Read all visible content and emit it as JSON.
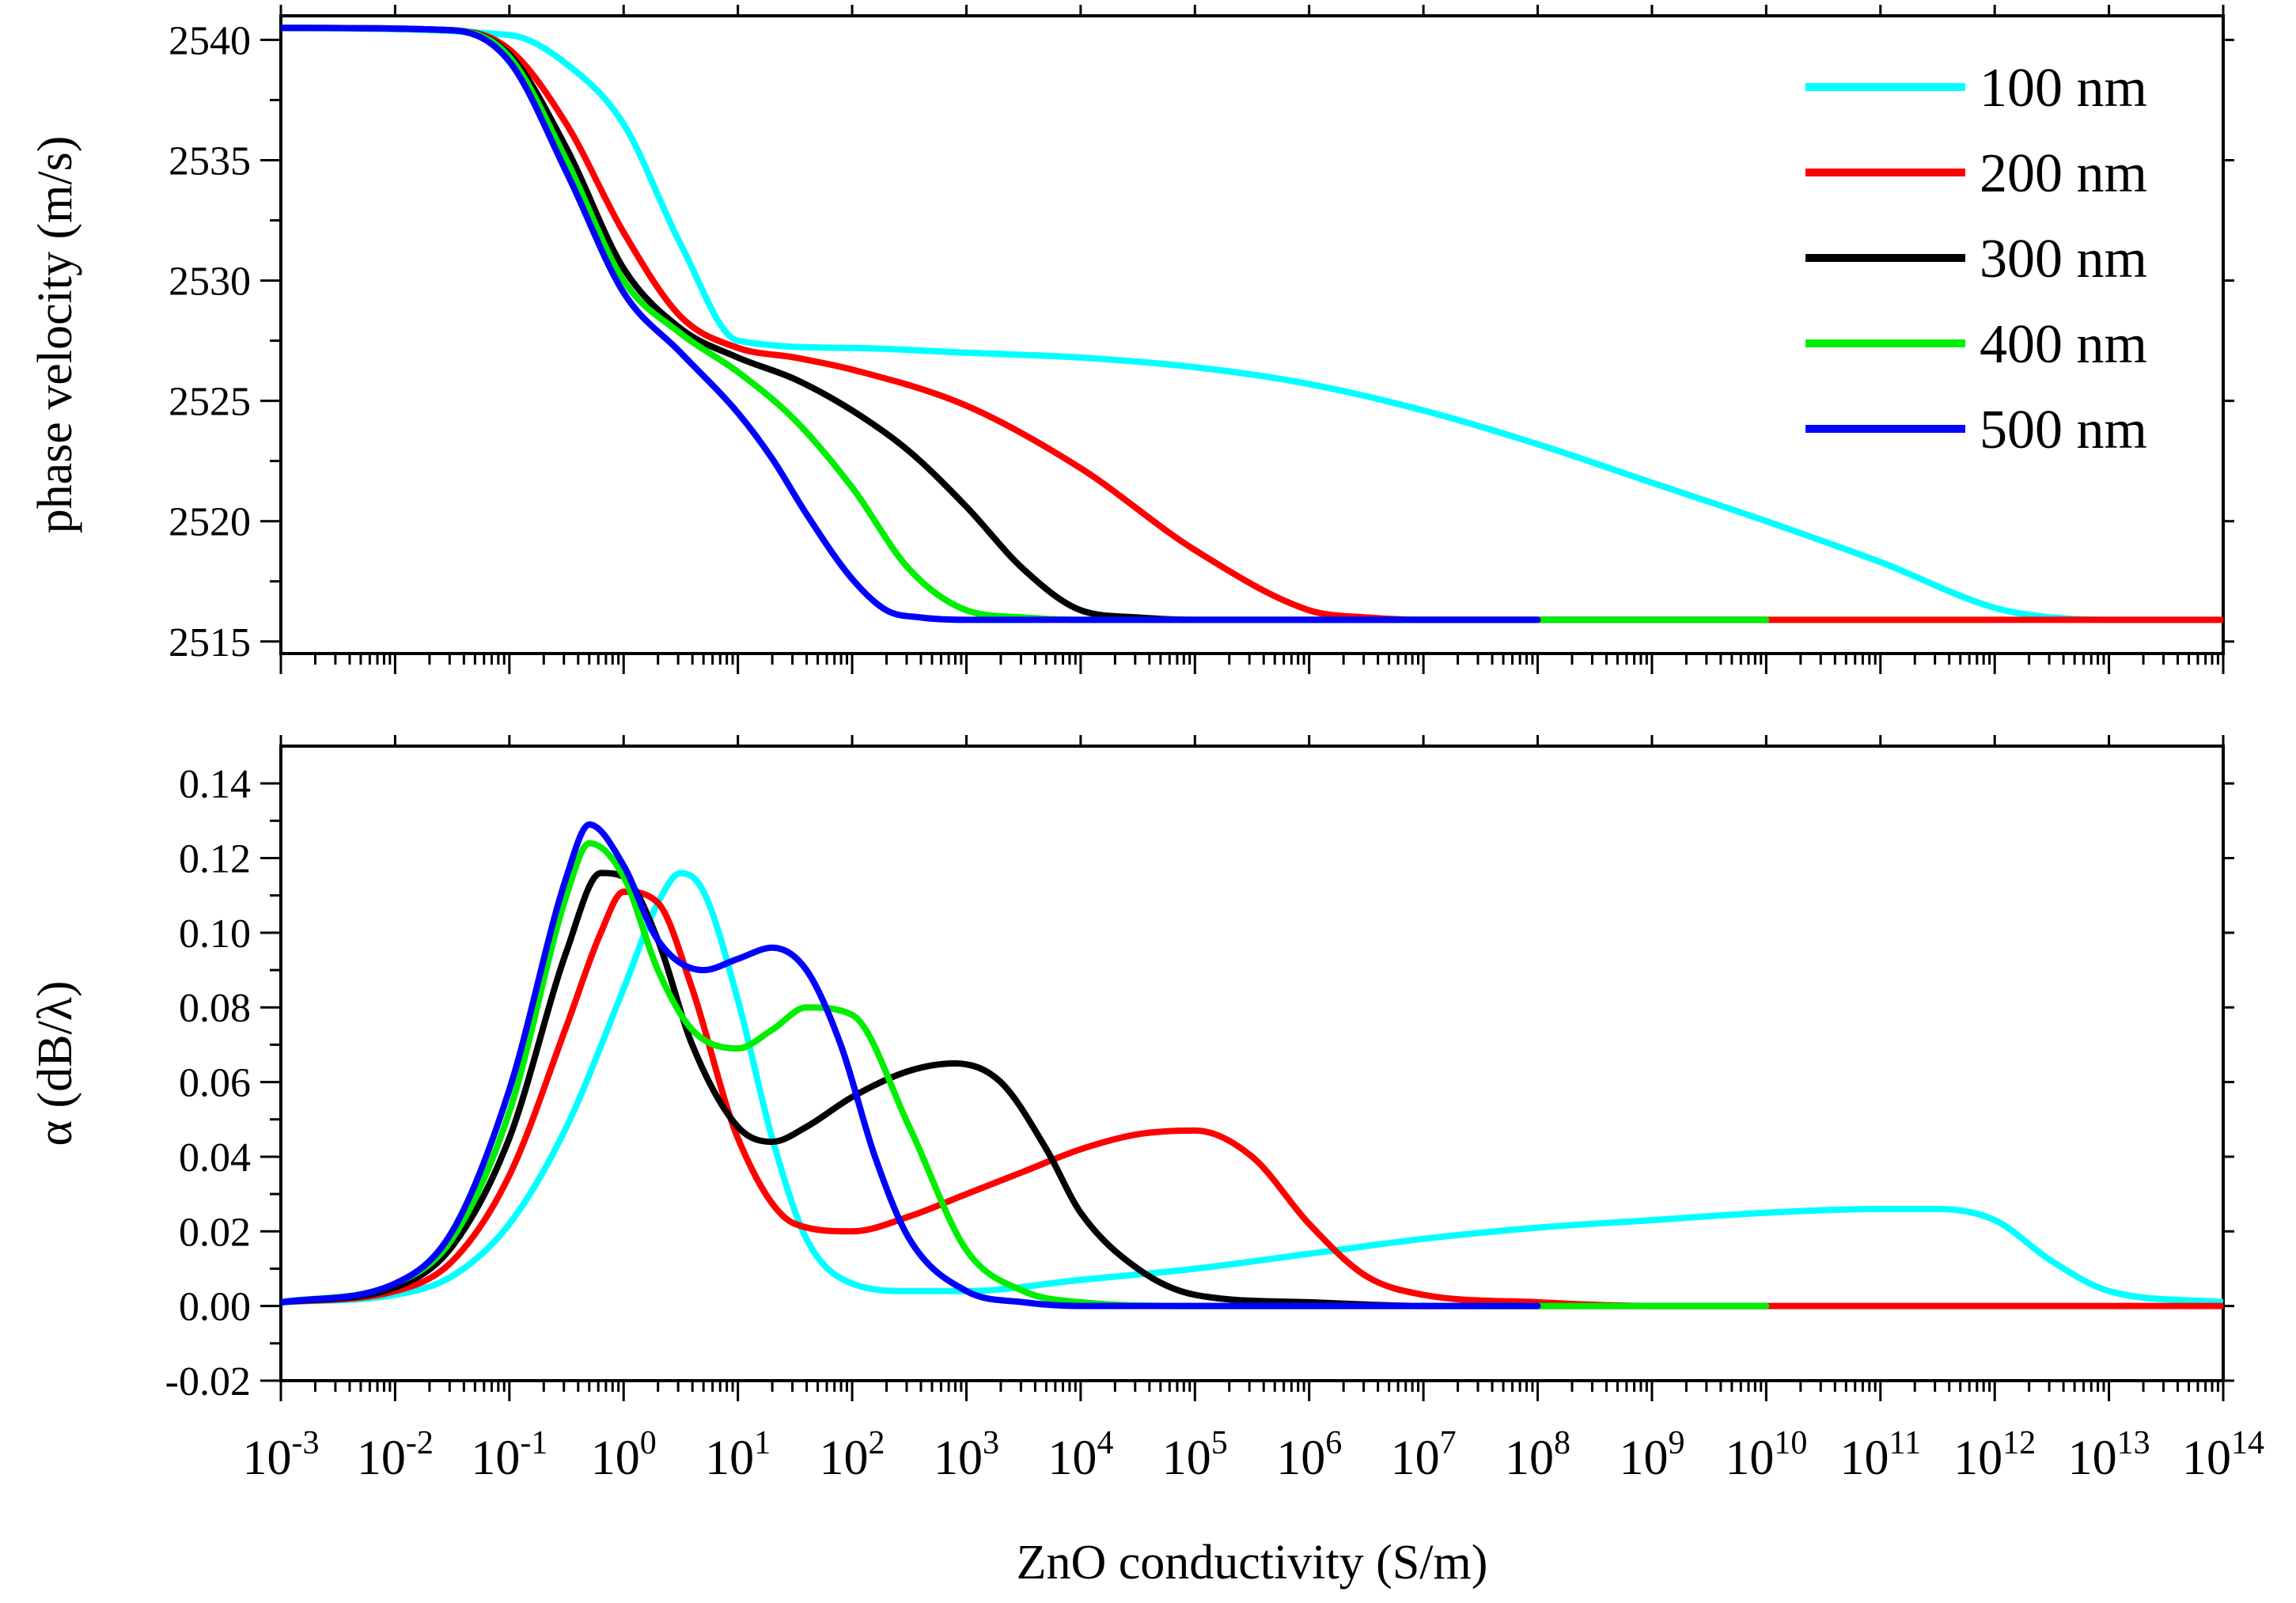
{
  "chart_data": [
    {
      "type": "line",
      "panel": "top",
      "ylabel": "phase velocity (m/s)",
      "xscale": "log",
      "xlim_exponent": [
        -3,
        14
      ],
      "ylim": [
        2514.5,
        2541
      ],
      "yticks": [
        2515,
        2520,
        2525,
        2530,
        2535,
        2540
      ],
      "ytick_labels": [
        "2515",
        "2520",
        "2525",
        "2530",
        "2535",
        "2540"
      ],
      "legend_position": "top-right",
      "legend": [
        "100 nm",
        "200 nm",
        "300 nm",
        "400 nm",
        "500 nm"
      ],
      "series": [
        {
          "name": "100 nm",
          "color": "#00FFFF",
          "log10_x": [
            -3,
            -1,
            -0.5,
            0,
            0.5,
            1,
            2,
            3,
            4,
            5,
            6,
            7,
            8,
            9,
            10,
            11,
            12,
            12.5,
            13,
            14
          ],
          "y": [
            2540.5,
            2540.2,
            2539.0,
            2536.5,
            2531.5,
            2527.5,
            2527.2,
            2527.0,
            2526.8,
            2526.4,
            2525.7,
            2524.6,
            2523.2,
            2521.6,
            2520.0,
            2518.3,
            2516.4,
            2516.0,
            2515.9,
            2515.9
          ]
        },
        {
          "name": "200 nm",
          "color": "#FF0000",
          "log10_x": [
            -3,
            -1.5,
            -1,
            -0.5,
            0,
            0.5,
            1,
            1.5,
            2,
            3,
            4,
            5,
            6,
            6.5,
            7,
            8,
            9,
            10,
            11,
            12,
            13,
            14
          ],
          "y": [
            2540.5,
            2540.4,
            2539.6,
            2536.5,
            2532.0,
            2528.5,
            2527.2,
            2526.8,
            2526.3,
            2524.8,
            2522.2,
            2518.8,
            2516.3,
            2516.0,
            2515.9,
            2515.9,
            2515.9,
            2515.9,
            2515.9,
            2515.9,
            2515.9,
            2515.9
          ]
        },
        {
          "name": "300 nm",
          "color": "#000000",
          "log10_x": [
            -3,
            -1.5,
            -1,
            -0.5,
            0,
            0.5,
            1,
            1.5,
            2,
            2.5,
            3,
            3.5,
            4,
            4.5,
            5,
            6,
            7,
            8,
            9,
            10
          ],
          "y": [
            2540.5,
            2540.4,
            2539.4,
            2535.5,
            2530.5,
            2528.0,
            2526.8,
            2525.9,
            2524.6,
            2522.9,
            2520.6,
            2518.0,
            2516.3,
            2516.0,
            2515.9,
            2515.9,
            2515.9,
            2515.9,
            2515.9,
            2515.9
          ]
        },
        {
          "name": "400 nm",
          "color": "#00EE00",
          "log10_x": [
            -3,
            -1.5,
            -1,
            -0.5,
            0,
            0.5,
            1,
            1.5,
            2,
            2.5,
            3,
            3.5,
            4,
            5,
            6,
            7,
            8,
            9,
            10
          ],
          "y": [
            2540.5,
            2540.4,
            2539.3,
            2535.0,
            2530.0,
            2527.8,
            2526.2,
            2524.2,
            2521.4,
            2518.0,
            2516.3,
            2516.0,
            2515.9,
            2515.9,
            2515.9,
            2515.9,
            2515.9,
            2515.9,
            2515.9
          ]
        },
        {
          "name": "500 nm",
          "color": "#0000FF",
          "log10_x": [
            -3,
            -1.5,
            -1,
            -0.5,
            0,
            0.5,
            1,
            1.3,
            1.6,
            2,
            2.3,
            2.6,
            3,
            4,
            5,
            6,
            7,
            8
          ],
          "y": [
            2540.5,
            2540.4,
            2539.1,
            2534.5,
            2529.5,
            2527.0,
            2524.5,
            2522.6,
            2520.3,
            2517.6,
            2516.3,
            2516.0,
            2515.9,
            2515.9,
            2515.9,
            2515.9,
            2515.9,
            2515.9
          ]
        }
      ]
    },
    {
      "type": "line",
      "panel": "bottom",
      "xlabel": "ZnO conductivity (S/m)",
      "ylabel": "α (dB/λ)",
      "xscale": "log",
      "xlim_exponent": [
        -3,
        14
      ],
      "xtick_base": "10",
      "xtick_exponents": [
        "-3",
        "-2",
        "-1",
        "0",
        "1",
        "2",
        "3",
        "4",
        "5",
        "6",
        "7",
        "8",
        "9",
        "10",
        "11",
        "12",
        "13",
        "14"
      ],
      "ylim": [
        -0.02,
        0.15
      ],
      "yticks": [
        -0.02,
        0.0,
        0.02,
        0.04,
        0.06,
        0.08,
        0.1,
        0.12,
        0.14
      ],
      "ytick_labels": [
        "-0.02",
        "0.00",
        "0.02",
        "0.04",
        "0.06",
        "0.08",
        "0.10",
        "0.12",
        "0.14"
      ],
      "series": [
        {
          "name": "100 nm",
          "color": "#00FFFF",
          "log10_x": [
            -3,
            -2,
            -1.5,
            -1,
            -0.5,
            0,
            0.3,
            0.5,
            0.7,
            1,
            1.3,
            1.6,
            2,
            2.5,
            3,
            4,
            5,
            6,
            7,
            8,
            9,
            10,
            11,
            11.5,
            12,
            12.5,
            13,
            14
          ],
          "y": [
            0.001,
            0.003,
            0.008,
            0.022,
            0.048,
            0.085,
            0.108,
            0.116,
            0.111,
            0.082,
            0.045,
            0.018,
            0.006,
            0.004,
            0.004,
            0.007,
            0.01,
            0.014,
            0.018,
            0.021,
            0.023,
            0.025,
            0.026,
            0.026,
            0.023,
            0.012,
            0.004,
            0.001
          ]
        },
        {
          "name": "200 nm",
          "color": "#FF0000",
          "log10_x": [
            -3,
            -2,
            -1.5,
            -1,
            -0.5,
            -0.2,
            0,
            0.3,
            0.6,
            1,
            1.5,
            2,
            2.5,
            3,
            3.5,
            4,
            4.5,
            5,
            5.5,
            6,
            6.5,
            7,
            8,
            9,
            10,
            11,
            12,
            13,
            14
          ],
          "y": [
            0.001,
            0.004,
            0.012,
            0.035,
            0.075,
            0.1,
            0.111,
            0.108,
            0.085,
            0.045,
            0.022,
            0.02,
            0.024,
            0.03,
            0.036,
            0.042,
            0.046,
            0.047,
            0.04,
            0.022,
            0.008,
            0.003,
            0.001,
            0.0,
            0.0,
            0.0,
            0.0,
            0.0,
            0.0
          ]
        },
        {
          "name": "300 nm",
          "color": "#000000",
          "log10_x": [
            -3,
            -2,
            -1.5,
            -1,
            -0.5,
            -0.2,
            0,
            0.3,
            0.6,
            1,
            1.3,
            1.6,
            2,
            2.5,
            2.9,
            3.3,
            3.7,
            4,
            4.5,
            5,
            6,
            7,
            8,
            9,
            10
          ],
          "y": [
            0.001,
            0.005,
            0.016,
            0.045,
            0.095,
            0.116,
            0.115,
            0.098,
            0.07,
            0.048,
            0.044,
            0.048,
            0.056,
            0.063,
            0.065,
            0.06,
            0.042,
            0.025,
            0.01,
            0.003,
            0.001,
            0.0,
            0.0,
            0.0,
            0.0
          ]
        },
        {
          "name": "400 nm",
          "color": "#00EE00",
          "log10_x": [
            -3,
            -2,
            -1.5,
            -1,
            -0.5,
            -0.3,
            0,
            0.3,
            0.6,
            1,
            1.3,
            1.6,
            2,
            2.5,
            3,
            3.5,
            4,
            5,
            6,
            7,
            8,
            9,
            10
          ],
          "y": [
            0.001,
            0.006,
            0.018,
            0.052,
            0.11,
            0.124,
            0.115,
            0.09,
            0.074,
            0.069,
            0.074,
            0.08,
            0.078,
            0.048,
            0.015,
            0.004,
            0.001,
            0.0,
            0.0,
            0.0,
            0.0,
            0.0,
            0.0
          ]
        },
        {
          "name": "500 nm",
          "color": "#0000FF",
          "log10_x": [
            -3,
            -2,
            -1.5,
            -1,
            -0.5,
            -0.3,
            0,
            0.3,
            0.7,
            1,
            1.3,
            1.6,
            1.9,
            2.2,
            2.5,
            3,
            3.5,
            4,
            5,
            6,
            7,
            8
          ],
          "y": [
            0.001,
            0.006,
            0.02,
            0.058,
            0.115,
            0.129,
            0.118,
            0.098,
            0.09,
            0.093,
            0.096,
            0.09,
            0.07,
            0.04,
            0.018,
            0.004,
            0.001,
            0.0,
            0.0,
            0.0,
            0.0,
            0.0
          ]
        }
      ]
    }
  ]
}
